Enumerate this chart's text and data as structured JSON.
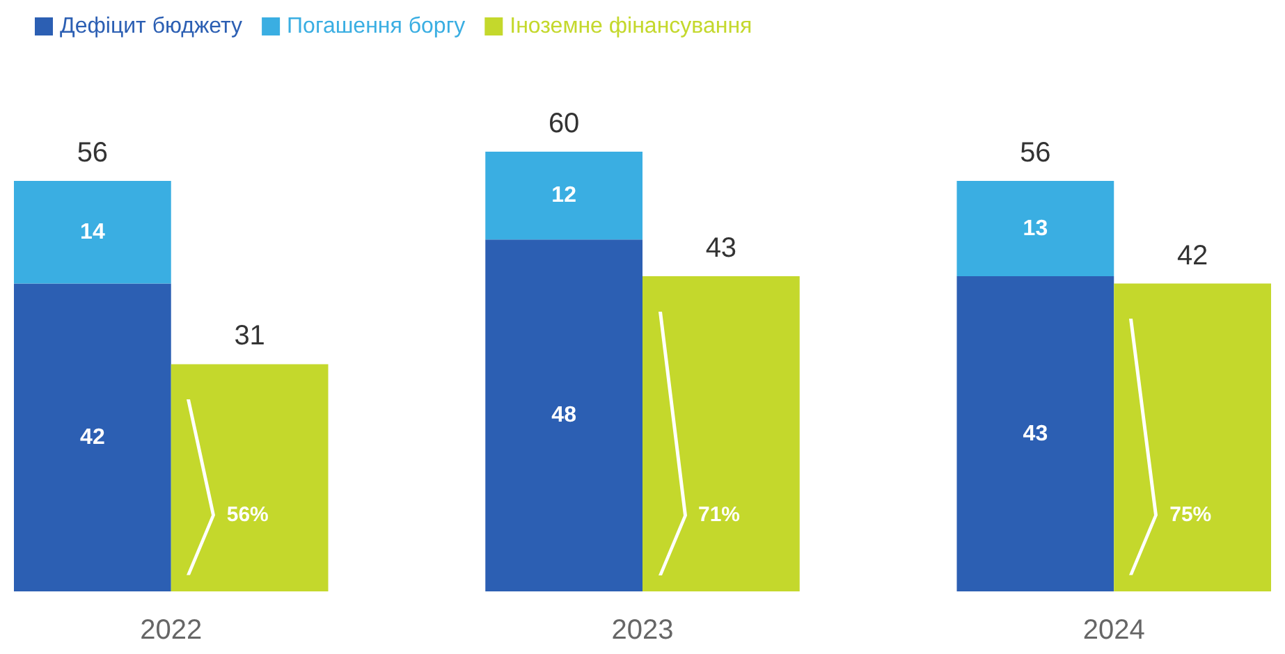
{
  "chart_data": {
    "type": "bar",
    "categories": [
      "2022",
      null,
      null,
      "2023",
      null,
      null,
      "2024",
      null
    ],
    "series": [
      {
        "name": "Дефіцит бюджету",
        "color": "#2c5fb3",
        "values": [
          42,
          null,
          null,
          48,
          null,
          null,
          43,
          null
        ]
      },
      {
        "name": "Погашення боргу",
        "color": "#3aaee2",
        "values": [
          14,
          null,
          null,
          12,
          null,
          null,
          13,
          null
        ]
      },
      {
        "name": "Іноземне фінансування",
        "color": "#c4d82c",
        "values": [
          null,
          31,
          null,
          null,
          43,
          null,
          null,
          42
        ]
      }
    ],
    "stacked": true,
    "data_labels": true,
    "totals": [
      "56",
      null,
      null,
      "60",
      null,
      null,
      "56",
      null
    ],
    "annotations": [
      "56%",
      "71%",
      "75%"
    ],
    "legend": "top left",
    "grid": false
  }
}
